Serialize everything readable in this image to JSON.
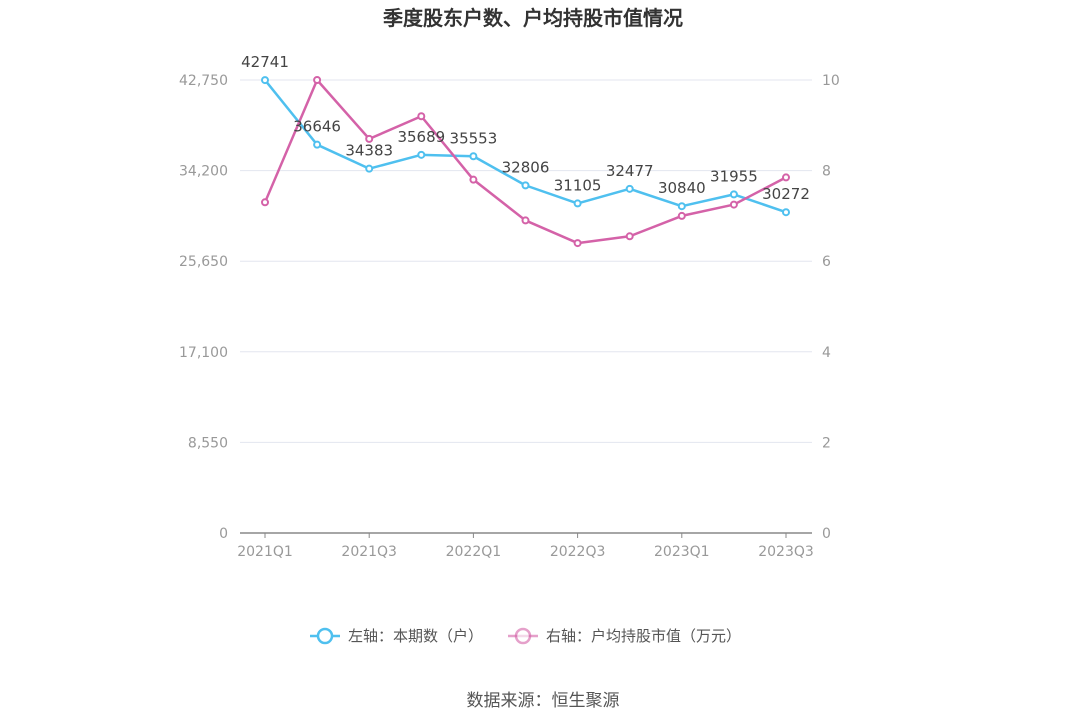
{
  "chart_data": {
    "type": "line",
    "title": "季度股东户数、户均持股市值情况",
    "categories": [
      "2021Q1",
      "2021Q2",
      "2021Q3",
      "2021Q4",
      "2022Q1",
      "2022Q2",
      "2022Q3",
      "2022Q4",
      "2023Q1",
      "2023Q2",
      "2023Q3"
    ],
    "x_tick_labels": [
      "2021Q1",
      "2021Q3",
      "2022Q1",
      "2022Q3",
      "2023Q1",
      "2023Q3"
    ],
    "left_axis": {
      "ylim": [
        0,
        42750
      ],
      "ticks": [
        "0",
        "8,550",
        "17,100",
        "25,650",
        "34,200",
        "42,750"
      ]
    },
    "right_axis": {
      "ylim": [
        0,
        10
      ],
      "ticks": [
        "0",
        "2",
        "4",
        "6",
        "8",
        "10"
      ]
    },
    "series": [
      {
        "name": "左轴：本期数（户）",
        "axis": "left",
        "color": "#4fc0ef",
        "values": [
          42741,
          36646,
          34383,
          35689,
          35553,
          32806,
          31105,
          32477,
          30840,
          31955,
          30272
        ],
        "labels": [
          "42741",
          "36646",
          "34383",
          "35689",
          "35553",
          "32806",
          "31105",
          "32477",
          "30840",
          "31955",
          "30272"
        ]
      },
      {
        "name": "右轴：户均持股市值（万元）",
        "axis": "right",
        "color": "#d462a8",
        "values": [
          7.3,
          10.0,
          8.7,
          9.2,
          7.8,
          6.9,
          6.4,
          6.55,
          7.0,
          7.25,
          7.85
        ]
      }
    ],
    "grid": true,
    "legend_position": "bottom-center",
    "source": "数据来源：恒生聚源"
  }
}
